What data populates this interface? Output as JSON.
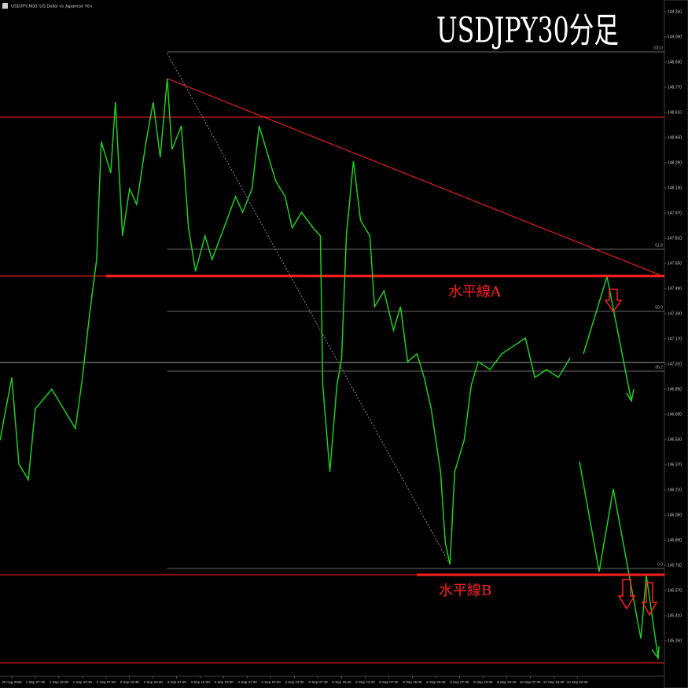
{
  "chart_data": {
    "type": "line",
    "header": "USDJPY,M30: US Dollar vs Japanese Yen",
    "title": "USDJPY30分足",
    "color": "#22cc22",
    "x": [
      0,
      5,
      8,
      12,
      15,
      22,
      27,
      32,
      35,
      38,
      41,
      43,
      47,
      49,
      52,
      55,
      58,
      62,
      65,
      68,
      71,
      73,
      77,
      80,
      83,
      87,
      90,
      95,
      100,
      103,
      107,
      110,
      113,
      117,
      121,
      124,
      128,
      133,
      136,
      137,
      140,
      143,
      145,
      147,
      150,
      153,
      157,
      159,
      163,
      167,
      170,
      173,
      177,
      180,
      183,
      187,
      189,
      191,
      193,
      197,
      200,
      203,
      208,
      213,
      218,
      223,
      227,
      232,
      237,
      242
    ],
    "values": [
      146.525,
      146.925,
      146.375,
      146.275,
      146.725,
      146.85,
      146.725,
      146.6,
      146.925,
      147.325,
      147.675,
      148.425,
      148.225,
      148.675,
      147.825,
      148.125,
      148.025,
      148.425,
      148.675,
      148.325,
      148.825,
      148.375,
      148.525,
      147.875,
      147.6,
      147.825,
      147.675,
      147.875,
      148.075,
      147.975,
      148.125,
      148.525,
      148.375,
      148.175,
      148.075,
      147.875,
      147.975,
      147.875,
      147.825,
      146.875,
      146.325,
      146.875,
      147.05,
      147.825,
      148.3,
      147.925,
      147.825,
      147.375,
      147.475,
      147.225,
      147.375,
      147.025,
      147.075,
      146.925,
      146.725,
      146.325,
      145.875,
      145.735,
      146.325,
      146.525,
      146.875,
      147.025,
      146.975,
      147.075,
      147.125,
      147.175,
      146.925,
      146.975,
      146.925,
      147.05
    ],
    "xlim": [
      0,
      282
    ],
    "xticks": [
      {
        "value": 5,
        "label": "29 Aug 2025"
      },
      {
        "value": 15,
        "label": "1 Sep 07:30"
      },
      {
        "value": 25,
        "label": "1 Sep 15:30"
      },
      {
        "value": 35,
        "label": "1 Sep 23:30"
      },
      {
        "value": 45,
        "label": "2 Sep 07:30"
      },
      {
        "value": 55,
        "label": "2 Sep 15:30"
      },
      {
        "value": 65,
        "label": "2 Sep 23:30"
      },
      {
        "value": 75,
        "label": "3 Sep 07:30"
      },
      {
        "value": 85,
        "label": "3 Sep 15:30"
      },
      {
        "value": 95,
        "label": "3 Sep 23:30"
      },
      {
        "value": 105,
        "label": "4 Sep 07:30"
      },
      {
        "value": 115,
        "label": "4 Sep 15:30"
      },
      {
        "value": 125,
        "label": "4 Sep 23:30"
      },
      {
        "value": 135,
        "label": "5 Sep 07:30"
      },
      {
        "value": 145,
        "label": "5 Sep 15:30"
      },
      {
        "value": 155,
        "label": "5 Sep 23:30"
      },
      {
        "value": 165,
        "label": "8 Sep 07:30"
      },
      {
        "value": 175,
        "label": "8 Sep 15:30"
      },
      {
        "value": 185,
        "label": "8 Sep 23:30"
      },
      {
        "value": 195,
        "label": "9 Sep 07:30"
      },
      {
        "value": 205,
        "label": "9 Sep 15:30"
      },
      {
        "value": 215,
        "label": "9 Sep 23:30"
      },
      {
        "value": 225,
        "label": "10 Sep 07:30"
      },
      {
        "value": 235,
        "label": "10 Sep 15:30"
      },
      {
        "value": 245,
        "label": "10 Sep 23:30"
      }
    ],
    "ylim": [
      145.025,
      149.325
    ],
    "yticks": [
      {
        "value": 149.25,
        "label": "149.250"
      },
      {
        "value": 149.09,
        "label": "149.090"
      },
      {
        "value": 148.93,
        "label": "148.930"
      },
      {
        "value": 148.77,
        "label": "148.770"
      },
      {
        "value": 148.61,
        "label": "148.610"
      },
      {
        "value": 148.45,
        "label": "148.450"
      },
      {
        "value": 148.29,
        "label": "148.290"
      },
      {
        "value": 148.13,
        "label": "148.130"
      },
      {
        "value": 147.97,
        "label": "147.970"
      },
      {
        "value": 147.81,
        "label": "147.810"
      },
      {
        "value": 147.65,
        "label": "147.650"
      },
      {
        "value": 147.49,
        "label": "147.490"
      },
      {
        "value": 147.33,
        "label": "147.330"
      },
      {
        "value": 147.17,
        "label": "147.170"
      },
      {
        "value": 147.01,
        "label": "147.010"
      },
      {
        "value": 146.85,
        "label": "146.850"
      },
      {
        "value": 146.69,
        "label": "146.690"
      },
      {
        "value": 146.53,
        "label": "146.530"
      },
      {
        "value": 146.37,
        "label": "146.370"
      },
      {
        "value": 146.21,
        "label": "146.210"
      },
      {
        "value": 146.05,
        "label": "146.050"
      },
      {
        "value": 145.89,
        "label": "145.890"
      },
      {
        "value": 145.73,
        "label": "145.730"
      },
      {
        "value": 145.57,
        "label": "145.570"
      },
      {
        "value": 145.41,
        "label": "145.410"
      },
      {
        "value": 145.25,
        "label": "145.250"
      }
    ],
    "levels": [
      {
        "value": 148.58,
        "color": "#ff2020"
      },
      {
        "value": 147.57,
        "color": "#ff2020",
        "label": "水平線A"
      },
      {
        "value": 145.67,
        "color": "#ff2020",
        "label": "水平線B"
      },
      {
        "value": 145.11,
        "color": "#ff2020"
      },
      {
        "value": 147.02,
        "color": "#9a9a9a"
      }
    ],
    "fib": [
      {
        "value": 148.995,
        "label": "100.0"
      },
      {
        "value": 147.74,
        "label": "61.8"
      },
      {
        "value": 147.345,
        "label": "50.0"
      },
      {
        "value": 146.965,
        "label": "38.2"
      },
      {
        "value": 145.71,
        "label": "0.0"
      }
    ],
    "fib_start": 71,
    "trend_lines": [
      {
        "x": [
          71,
          282
        ],
        "values": [
          148.825,
          147.565
        ],
        "color": "#ff2020"
      },
      {
        "x": [
          71,
          191
        ],
        "values": [
          148.985,
          145.735
        ],
        "color": "#888888",
        "dashed": true
      }
    ]
  }
}
